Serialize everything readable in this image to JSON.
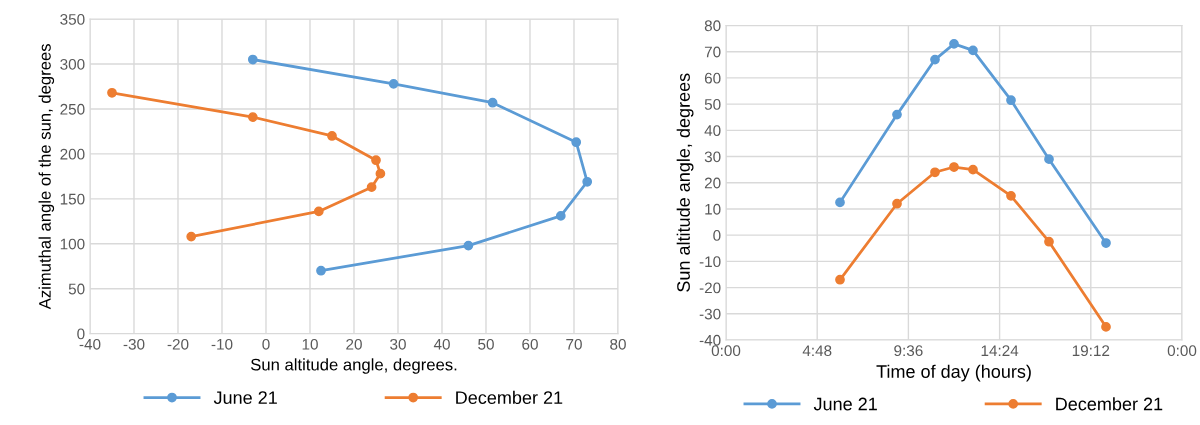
{
  "chart_data": [
    {
      "type": "line",
      "xlabel": "Sun altitude angle, degrees.",
      "ylabel": "Azimuthal angle of the sun, degrees",
      "xlim": [
        -40,
        80
      ],
      "xticks": [
        -40,
        -30,
        -20,
        -10,
        0,
        10,
        20,
        30,
        40,
        50,
        60,
        70,
        80
      ],
      "ylim": [
        0,
        350
      ],
      "yticks": [
        0,
        50,
        100,
        150,
        200,
        250,
        300,
        350
      ],
      "grid": true,
      "legend": "bottom",
      "marker": "circle",
      "line_style": "solid",
      "series": [
        {
          "name": "June 21",
          "color": "#5b9bd5",
          "x": [
            -3,
            29,
            51.5,
            70.5,
            73,
            67,
            46,
            12.5
          ],
          "values": [
            305,
            278,
            257,
            213,
            169,
            131,
            98,
            70
          ]
        },
        {
          "name": "December 21",
          "color": "#ed7d31",
          "x": [
            -35,
            -3,
            15,
            25,
            26,
            24,
            12,
            -17
          ],
          "values": [
            268,
            241,
            220,
            193,
            178,
            163,
            136,
            108
          ]
        }
      ]
    },
    {
      "type": "line",
      "xlabel": "Time of day (hours)",
      "ylabel": "Sun altitude angle, degrees",
      "xlim": [
        0,
        24
      ],
      "xticks": [
        {
          "value": 0,
          "label": "0:00"
        },
        {
          "value": 4.8,
          "label": "4:48"
        },
        {
          "value": 9.6,
          "label": "9:36"
        },
        {
          "value": 14.4,
          "label": "14:24"
        },
        {
          "value": 19.2,
          "label": "19:12"
        },
        {
          "value": 24,
          "label": "0:00"
        }
      ],
      "ylim": [
        -40,
        80
      ],
      "yticks": [
        -40,
        -30,
        -20,
        -10,
        0,
        10,
        20,
        30,
        40,
        50,
        60,
        70,
        80
      ],
      "grid": true,
      "legend": "bottom",
      "marker": "circle",
      "line_style": "solid",
      "x": [
        6,
        9,
        11,
        12,
        13,
        15,
        17,
        20
      ],
      "series": [
        {
          "name": "June 21",
          "color": "#5b9bd5",
          "values": [
            12.5,
            46,
            67,
            73,
            70.5,
            51.5,
            29,
            -3
          ]
        },
        {
          "name": "December 21",
          "color": "#ed7d31",
          "values": [
            -17,
            12,
            24,
            26,
            25,
            15,
            -2.5,
            -35
          ]
        }
      ]
    }
  ]
}
